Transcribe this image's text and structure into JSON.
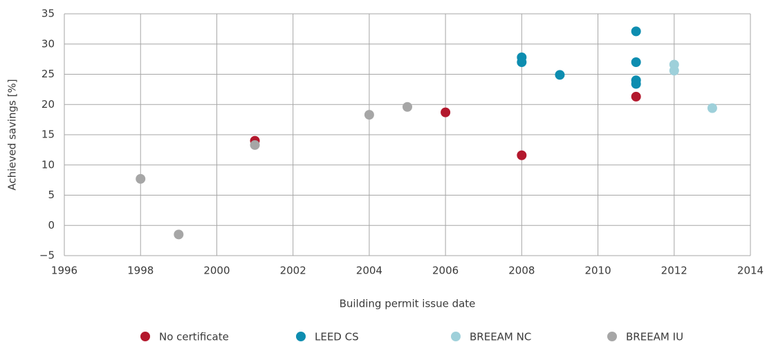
{
  "chart_data": {
    "type": "scatter",
    "x_label": "Building permit issue date",
    "y_label": "Achieved savings [%]",
    "xlim": [
      1996,
      2014
    ],
    "xticks": [
      1996,
      1998,
      2000,
      2002,
      2004,
      2006,
      2008,
      2010,
      2012,
      2014
    ],
    "ylim": [
      -5,
      35
    ],
    "yticks": [
      {
        "value": -5,
        "label": "−5"
      },
      0,
      5,
      10,
      15,
      20,
      25,
      30,
      35
    ],
    "grid": true,
    "legend": "bottom",
    "series": [
      {
        "name": "No certificate",
        "color": "#b3182d",
        "x": [
          2001,
          2006,
          2008,
          2011
        ],
        "values": [
          14.0,
          18.7,
          11.6,
          21.3
        ]
      },
      {
        "name": "LEED CS",
        "color": "#0d8db0",
        "x": [
          2008,
          2008,
          2009,
          2011,
          2011,
          2011,
          2011
        ],
        "values": [
          27.8,
          27.0,
          24.9,
          32.1,
          27.0,
          24.0,
          23.4
        ]
      },
      {
        "name": "BREEAM NC",
        "color": "#9ed0da",
        "x": [
          2012,
          2012,
          2013
        ],
        "values": [
          26.6,
          25.6,
          19.4
        ]
      },
      {
        "name": "BREEAM IU",
        "color": "#a6a6a6",
        "x": [
          1998,
          1999,
          2001,
          2004,
          2005
        ],
        "values": [
          7.7,
          -1.5,
          13.3,
          18.3,
          19.6
        ]
      }
    ]
  }
}
